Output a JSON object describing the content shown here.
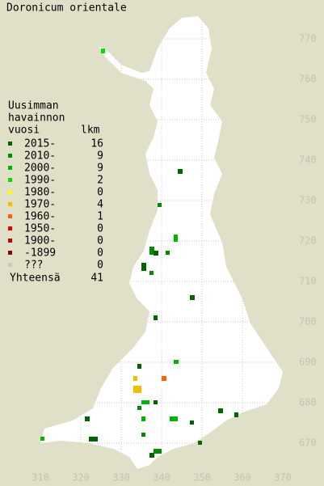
{
  "title": "Doronicum orientale",
  "legend": {
    "heading": [
      "Uusimman",
      "havainnon",
      "vuosi"
    ],
    "count_heading": "lkm",
    "entries": [
      {
        "label": "2015-",
        "color": "#006400",
        "count": 16
      },
      {
        "label": "2010-",
        "color": "#008c00",
        "count": 9
      },
      {
        "label": "2000-",
        "color": "#00b400",
        "count": 9
      },
      {
        "label": "1990-",
        "color": "#00e000",
        "count": 2
      },
      {
        "label": "1980-",
        "color": "#ffff00",
        "count": 0
      },
      {
        "label": "1970-",
        "color": "#f0c000",
        "count": 4
      },
      {
        "label": "1960-",
        "color": "#ff6000",
        "count": 1
      },
      {
        "label": "1950-",
        "color": "#e00000",
        "count": 0
      },
      {
        "label": "1900-",
        "color": "#c00000",
        "count": 0
      },
      {
        "label": "-1899",
        "color": "#900000",
        "count": 0
      },
      {
        "label": "???",
        "color": "#c8c8c8",
        "count": 0
      }
    ],
    "total_label": "Yhteensä",
    "total": 41
  },
  "axes": {
    "x_ticks": [
      310,
      320,
      330,
      340,
      350,
      360,
      370
    ],
    "y_ticks": [
      770,
      760,
      750,
      740,
      730,
      720,
      710,
      700,
      690,
      680,
      670
    ]
  }
}
